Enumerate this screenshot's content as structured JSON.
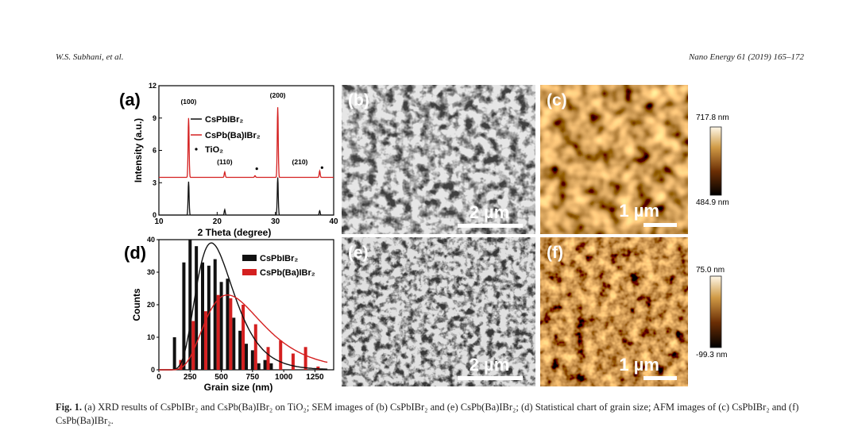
{
  "header": {
    "left": "W.S. Subhani, et al.",
    "right": "Nano Energy 61 (2019) 165–172"
  },
  "panels": {
    "a": {
      "label": "(a)"
    },
    "b": {
      "label": "(b)",
      "scalebar": "2 µm"
    },
    "c": {
      "label": "(c)",
      "scalebar": "1 µm",
      "colorbar_max": "717.8 nm",
      "colorbar_min": "484.9 nm"
    },
    "d": {
      "label": "(d)"
    },
    "e": {
      "label": "(e)",
      "scalebar": "2 µm"
    },
    "f": {
      "label": "(f)",
      "scalebar": "1 µm",
      "colorbar_max": "75.0 nm",
      "colorbar_min": "-99.3 nm"
    }
  },
  "caption": {
    "fig": "Fig. 1.",
    "text": "(a) XRD results of CsPbIBr₂ and CsPb(Ba)IBr₂ on TiO₂; SEM images of (b) CsPbIBr₂ and (e) CsPb(Ba)IBr₂; (d) Statistical chart of grain size; AFM images of (c) CsPbIBr₂ and (f) CsPb(Ba)IBr₂."
  },
  "colors": {
    "black_series": "#111111",
    "red_series": "#d42020"
  },
  "chart_data": [
    {
      "id": "xrd",
      "type": "line",
      "xlabel": "2 Theta (degree)",
      "ylabel": "Intensity (a.u.)",
      "xlim": [
        10,
        40
      ],
      "ylim": [
        0,
        12
      ],
      "xticks": [
        "10",
        "20",
        "30",
        "40"
      ],
      "yticks": [
        "0",
        "3",
        "6",
        "9",
        "12"
      ],
      "legend": [
        "CsPbIBr₂",
        "CsPb(Ba)IBr₂",
        "TiO₂"
      ],
      "annotations": [
        "(100)",
        "(200)",
        "(110)",
        "(210)"
      ],
      "series": [
        {
          "name": "CsPbIBr₂",
          "offset": 0,
          "peaks": [
            [
              15.1,
              3.1
            ],
            [
              21.3,
              0.5
            ],
            [
              30.4,
              3.5
            ],
            [
              37.6,
              0.4
            ]
          ]
        },
        {
          "name": "CsPb(Ba)IBr₂",
          "offset": 3.5,
          "peaks": [
            [
              15.1,
              5.5
            ],
            [
              21.3,
              0.5
            ],
            [
              26.5,
              0.15
            ],
            [
              30.4,
              6.5
            ],
            [
              37.6,
              0.6
            ]
          ]
        }
      ],
      "tio2_markers": [
        [
          26.8,
          4.3
        ],
        [
          38.0,
          4.4
        ]
      ]
    },
    {
      "id": "grain",
      "type": "bar",
      "xlabel": "Grain size (nm)",
      "ylabel": "Counts",
      "xlim": [
        0,
        1400
      ],
      "ylim": [
        0,
        40
      ],
      "xticks": [
        "0",
        "250",
        "500",
        "750",
        "1000",
        "1250"
      ],
      "yticks": [
        "0",
        "10",
        "20",
        "30",
        "40"
      ],
      "legend": [
        "CsPbIBr₂",
        "CsPb(Ba)IBr₂"
      ],
      "series": [
        {
          "name": "CsPbIBr₂",
          "x": [
            125,
            200,
            250,
            300,
            350,
            400,
            450,
            500,
            550,
            600,
            650,
            700,
            750,
            800,
            850,
            900
          ],
          "values": [
            10,
            33,
            40,
            38,
            33,
            32,
            34,
            27,
            28,
            16,
            12,
            8,
            6,
            2,
            3,
            2
          ]
        },
        {
          "name": "CsPb(Ba)IBr₂",
          "x": [
            175,
            275,
            375,
            475,
            575,
            675,
            775,
            875,
            975,
            1075,
            1175,
            1275
          ],
          "values": [
            3,
            15,
            18,
            23,
            22,
            20,
            14,
            7,
            9,
            5,
            7,
            1
          ]
        }
      ],
      "fits": [
        {
          "name": "CsPbIBr₂",
          "mean": 420,
          "sigma": 150,
          "peak": 39
        },
        {
          "name": "CsPb(Ba)IBr₂",
          "mean": 550,
          "sigma": 230,
          "peak": 23
        }
      ]
    }
  ]
}
